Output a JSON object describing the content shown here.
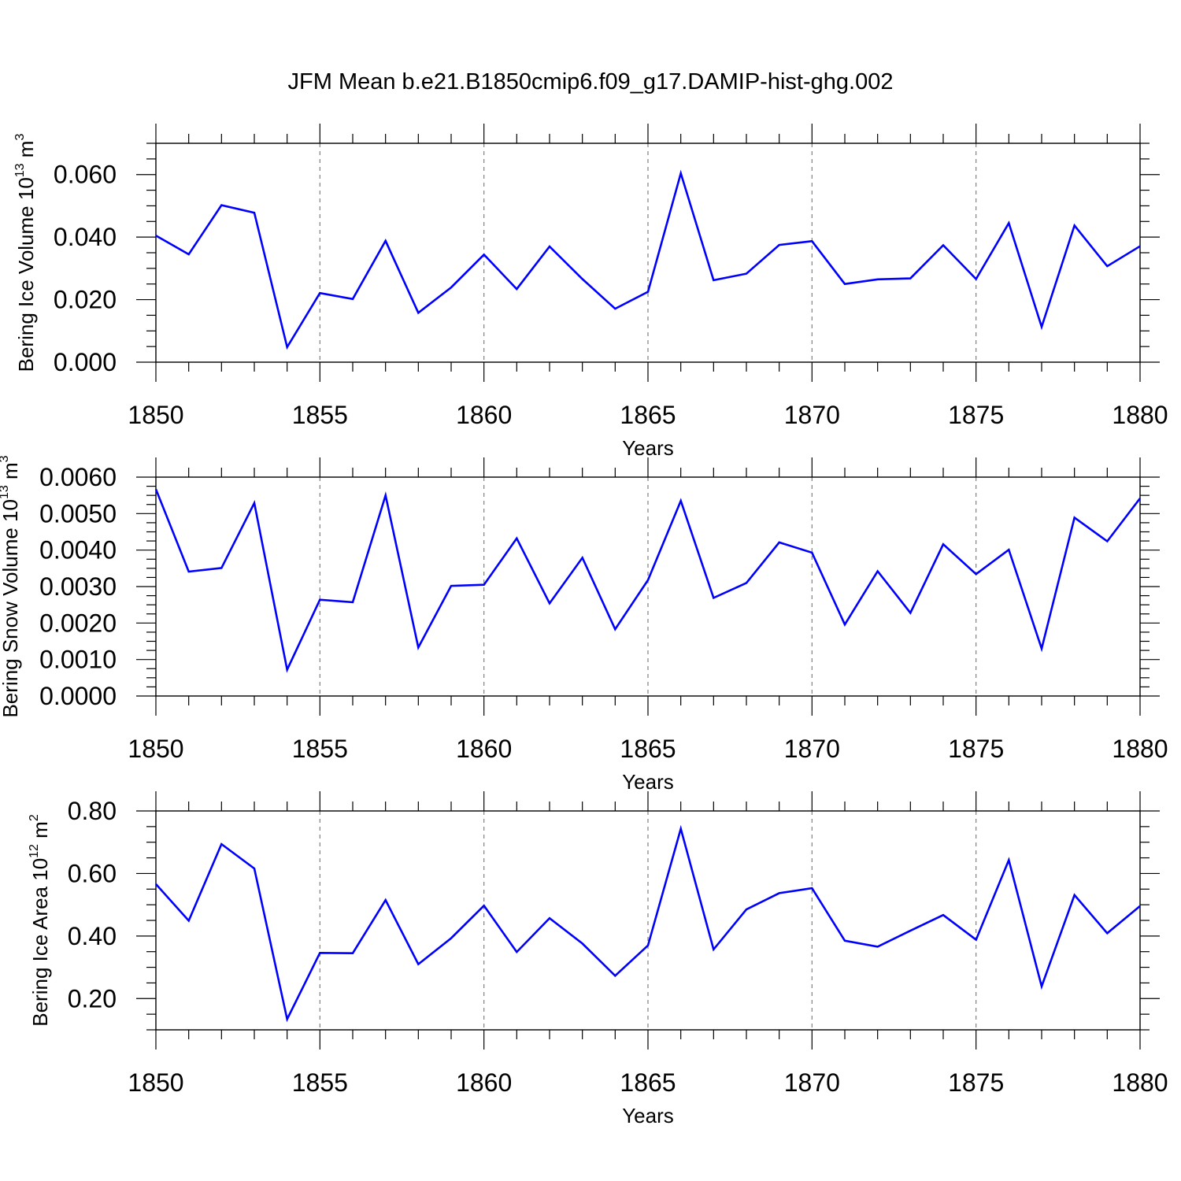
{
  "title": "JFM Mean b.e21.B1850cmip6.f09_g17.DAMIP-hist-ghg.002",
  "colors": {
    "series": "#0000ff",
    "axes": "#000000",
    "grid": "#808080"
  },
  "chart_data": [
    {
      "type": "line",
      "xlabel": "Years",
      "ylabel": {
        "text": "Bering Ice Volume 10",
        "exponent": "13",
        "unit": " m",
        "unit_exponent": "3"
      },
      "xlim": [
        1850,
        1880
      ],
      "ylim": [
        0.0,
        0.07
      ],
      "xticks": [
        1850,
        1855,
        1860,
        1865,
        1870,
        1875,
        1880
      ],
      "xtick_labels": [
        "1850",
        "1855",
        "1860",
        "1865",
        "1870",
        "1875",
        "1880"
      ],
      "yticks": [
        0.0,
        0.02,
        0.04,
        0.06
      ],
      "ytick_labels": [
        "0.000",
        "0.020",
        "0.040",
        "0.060"
      ],
      "y_minor_step": 0.005,
      "vertical_grid": [
        1855,
        1860,
        1865,
        1870,
        1875
      ],
      "x": [
        1850,
        1851,
        1852,
        1853,
        1854,
        1855,
        1856,
        1857,
        1858,
        1859,
        1860,
        1861,
        1862,
        1863,
        1864,
        1865,
        1866,
        1867,
        1868,
        1869,
        1870,
        1871,
        1872,
        1873,
        1874,
        1875,
        1876,
        1877,
        1878,
        1879,
        1880
      ],
      "series": [
        {
          "name": "Bering Ice Volume",
          "values": [
            0.0405,
            0.0345,
            0.0502,
            0.0478,
            0.0048,
            0.0221,
            0.0202,
            0.0388,
            0.0158,
            0.0239,
            0.0344,
            0.0234,
            0.037,
            0.0266,
            0.0171,
            0.0225,
            0.0604,
            0.0262,
            0.0283,
            0.0375,
            0.0387,
            0.025,
            0.0265,
            0.0268,
            0.0374,
            0.0266,
            0.0445,
            0.0113,
            0.0437,
            0.0307,
            0.0371
          ]
        }
      ]
    },
    {
      "type": "line",
      "xlabel": "Years",
      "ylabel": {
        "text": "Bering Snow Volume 10",
        "exponent": "13",
        "unit": " m",
        "unit_exponent": "3"
      },
      "xlim": [
        1850,
        1880
      ],
      "ylim": [
        0.0,
        0.006
      ],
      "xticks": [
        1850,
        1855,
        1860,
        1865,
        1870,
        1875,
        1880
      ],
      "xtick_labels": [
        "1850",
        "1855",
        "1860",
        "1865",
        "1870",
        "1875",
        "1880"
      ],
      "yticks": [
        0.0,
        0.001,
        0.002,
        0.003,
        0.004,
        0.005,
        0.006
      ],
      "ytick_labels": [
        "0.0000",
        "0.0010",
        "0.0020",
        "0.0030",
        "0.0040",
        "0.0050",
        "0.0060"
      ],
      "y_minor_step": 0.00025,
      "vertical_grid": [
        1855,
        1860,
        1865,
        1870,
        1875
      ],
      "x": [
        1850,
        1851,
        1852,
        1853,
        1854,
        1855,
        1856,
        1857,
        1858,
        1859,
        1860,
        1861,
        1862,
        1863,
        1864,
        1865,
        1866,
        1867,
        1868,
        1869,
        1870,
        1871,
        1872,
        1873,
        1874,
        1875,
        1876,
        1877,
        1878,
        1879,
        1880
      ],
      "series": [
        {
          "name": "Bering Snow Volume",
          "values": [
            0.00567,
            0.00341,
            0.00351,
            0.00529,
            0.00072,
            0.00264,
            0.00257,
            0.0055,
            0.00133,
            0.00302,
            0.00305,
            0.00432,
            0.00254,
            0.00379,
            0.00183,
            0.00318,
            0.00535,
            0.00269,
            0.0031,
            0.00421,
            0.00393,
            0.00196,
            0.00342,
            0.00228,
            0.00416,
            0.00334,
            0.00401,
            0.0013,
            0.00489,
            0.00424,
            0.00542
          ]
        }
      ]
    },
    {
      "type": "line",
      "xlabel": "Years",
      "ylabel": {
        "text": "Bering Ice Area 10",
        "exponent": "12",
        "unit": " m",
        "unit_exponent": "2"
      },
      "xlim": [
        1850,
        1880
      ],
      "ylim": [
        0.1,
        0.8
      ],
      "xticks": [
        1850,
        1855,
        1860,
        1865,
        1870,
        1875,
        1880
      ],
      "xtick_labels": [
        "1850",
        "1855",
        "1860",
        "1865",
        "1870",
        "1875",
        "1880"
      ],
      "yticks": [
        0.2,
        0.4,
        0.6,
        0.8
      ],
      "ytick_labels": [
        "0.20",
        "0.40",
        "0.60",
        "0.80"
      ],
      "y_minor_step": 0.05,
      "vertical_grid": [
        1855,
        1860,
        1865,
        1870,
        1875
      ],
      "x": [
        1850,
        1851,
        1852,
        1853,
        1854,
        1855,
        1856,
        1857,
        1858,
        1859,
        1860,
        1861,
        1862,
        1863,
        1864,
        1865,
        1866,
        1867,
        1868,
        1869,
        1870,
        1871,
        1872,
        1873,
        1874,
        1875,
        1876,
        1877,
        1878,
        1879,
        1880
      ],
      "series": [
        {
          "name": "Bering Ice Area",
          "values": [
            0.566,
            0.449,
            0.694,
            0.616,
            0.134,
            0.346,
            0.345,
            0.515,
            0.31,
            0.393,
            0.497,
            0.349,
            0.457,
            0.376,
            0.273,
            0.37,
            0.743,
            0.357,
            0.485,
            0.537,
            0.553,
            0.385,
            0.366,
            0.417,
            0.467,
            0.388,
            0.643,
            0.239,
            0.531,
            0.409,
            0.496
          ]
        }
      ]
    }
  ]
}
